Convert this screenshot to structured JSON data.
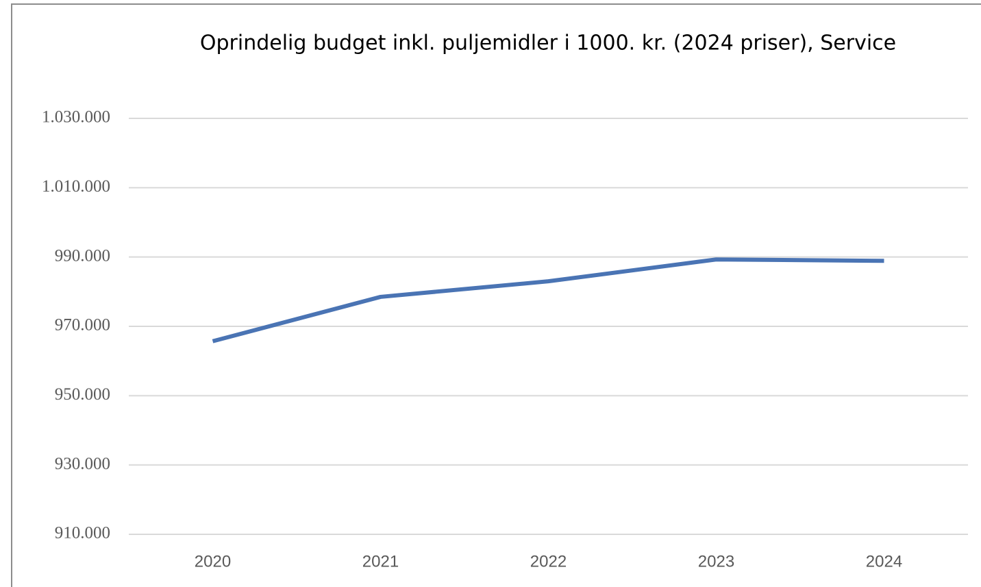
{
  "chart_data": {
    "type": "line",
    "title": "Oprindelig budget inkl. puljemidler i 1000. kr. (2024 priser), Service",
    "categories": [
      "2020",
      "2021",
      "2022",
      "2023",
      "2024"
    ],
    "series": [
      {
        "name": "Service",
        "color": "#4a74b4",
        "values": [
          965700,
          978500,
          983000,
          989300,
          988900
        ]
      }
    ],
    "ylim": [
      910000,
      1030000
    ],
    "yticks": [
      {
        "value": 910000,
        "label": "910.000"
      },
      {
        "value": 930000,
        "label": "930.000"
      },
      {
        "value": 950000,
        "label": "950.000"
      },
      {
        "value": 970000,
        "label": "970.000"
      },
      {
        "value": 990000,
        "label": "990.000"
      },
      {
        "value": 1010000,
        "label": "1.010.000"
      },
      {
        "value": 1030000,
        "label": "1.030.000"
      }
    ],
    "grid": true
  }
}
